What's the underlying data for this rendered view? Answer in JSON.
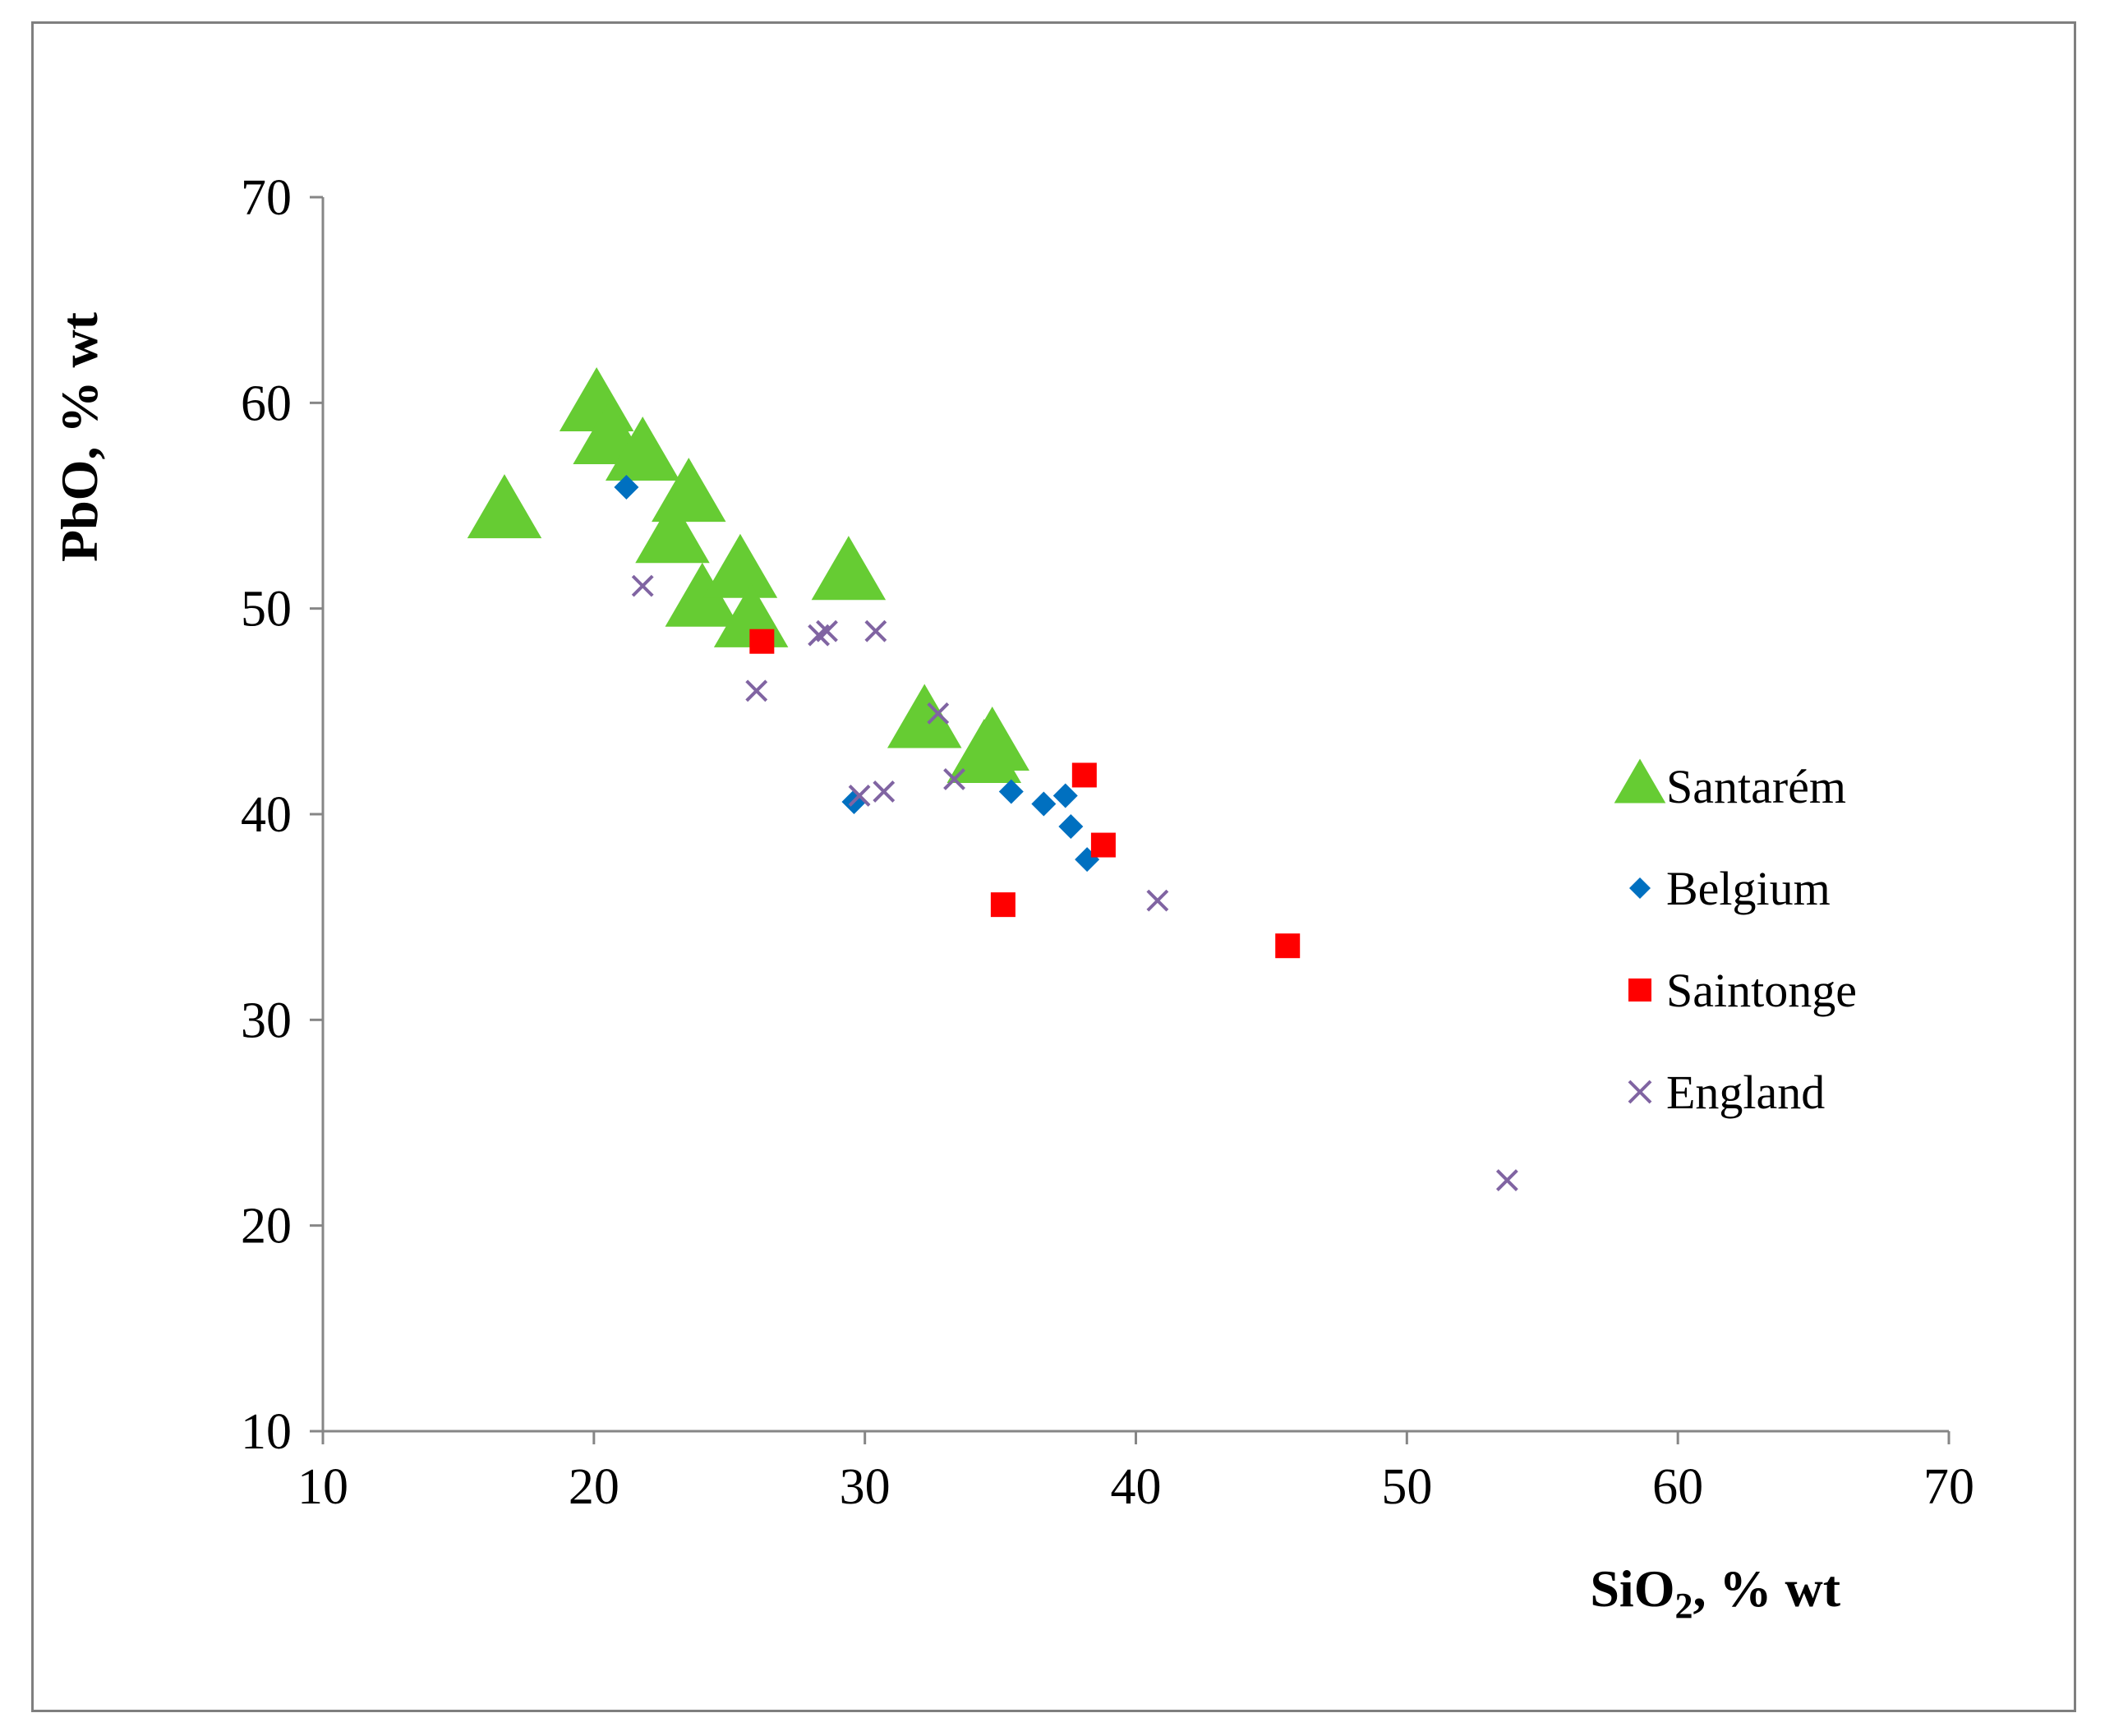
{
  "chart_data": {
    "type": "scatter",
    "xlabel": "SiO",
    "xlabel_subscript": "2",
    "xlabel_suffix": ", % wt",
    "ylabel": "PbO, % wt",
    "xlim": [
      10,
      70
    ],
    "ylim": [
      10,
      70
    ],
    "xticks": [
      10,
      20,
      30,
      40,
      50,
      60,
      70
    ],
    "yticks": [
      10,
      20,
      30,
      40,
      50,
      60,
      70
    ],
    "grid": false,
    "legend_position": "right",
    "series": [
      {
        "name": "Santarém",
        "marker": "triangle",
        "color": "#66cc33",
        "points": [
          [
            16.7,
            54.6
          ],
          [
            20.1,
            59.8
          ],
          [
            20.6,
            58.2
          ],
          [
            21.8,
            57.4
          ],
          [
            23.5,
            55.4
          ],
          [
            22.9,
            53.4
          ],
          [
            24.0,
            50.3
          ],
          [
            25.4,
            51.7
          ],
          [
            25.8,
            49.3
          ],
          [
            29.4,
            51.6
          ],
          [
            32.2,
            44.4
          ],
          [
            34.7,
            43.3
          ],
          [
            34.4,
            42.7
          ]
        ]
      },
      {
        "name": "Belgium",
        "marker": "diamond",
        "color": "#0070c0",
        "points": [
          [
            21.2,
            55.9
          ],
          [
            29.6,
            40.6
          ],
          [
            35.4,
            41.1
          ],
          [
            36.6,
            40.5
          ],
          [
            37.4,
            40.9
          ],
          [
            37.6,
            39.4
          ],
          [
            38.2,
            37.8
          ]
        ]
      },
      {
        "name": "Saintonge",
        "marker": "square",
        "color": "#ff0000",
        "points": [
          [
            26.2,
            48.4
          ],
          [
            38.1,
            41.9
          ],
          [
            38.8,
            38.5
          ],
          [
            35.1,
            35.6
          ],
          [
            45.6,
            33.6
          ]
        ]
      },
      {
        "name": "England",
        "marker": "x",
        "color": "#8064a2",
        "points": [
          [
            21.8,
            51.1
          ],
          [
            26.0,
            46.0
          ],
          [
            28.3,
            48.7
          ],
          [
            28.6,
            48.9
          ],
          [
            30.4,
            48.9
          ],
          [
            32.7,
            44.9
          ],
          [
            29.8,
            40.9
          ],
          [
            30.7,
            41.1
          ],
          [
            33.3,
            41.7
          ],
          [
            40.8,
            35.8
          ],
          [
            53.7,
            22.2
          ]
        ]
      }
    ]
  }
}
